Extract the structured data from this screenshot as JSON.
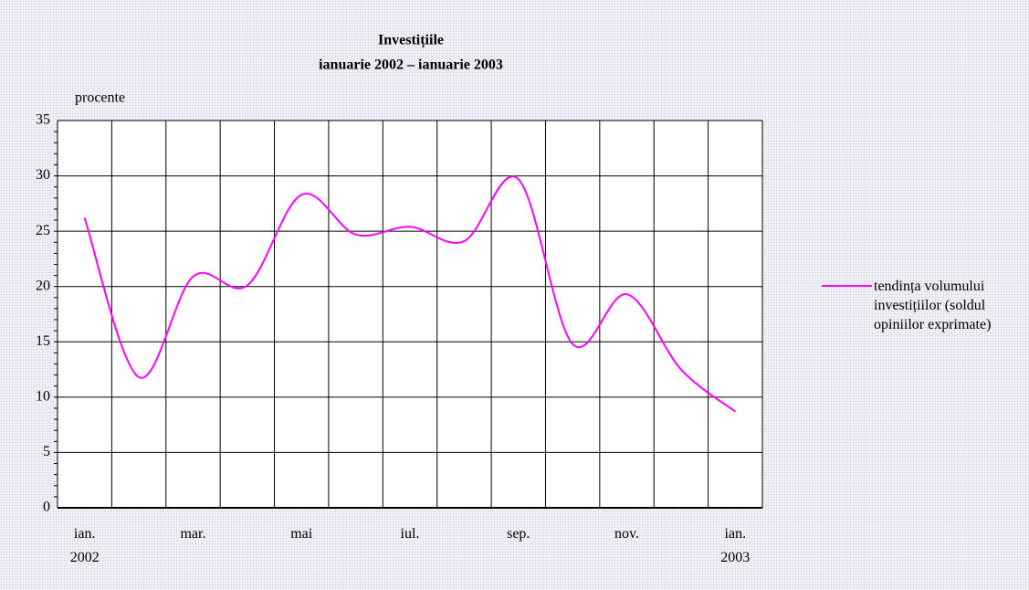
{
  "chart_data": {
    "type": "line",
    "title": "Investițiile",
    "subtitle": "ianuarie 2002 – ianuarie 2003",
    "y_label": "procente",
    "categories": [
      "ian. 2002",
      null,
      "mar.",
      null,
      "mai",
      null,
      "iul.",
      null,
      "sep.",
      null,
      "nov.",
      null,
      "ian. 2003"
    ],
    "series": [
      {
        "name": "tendința volumului investițiilor (soldul opiniilor exprimate)",
        "color": "#ff00ff",
        "values": [
          26.2,
          11.8,
          20.9,
          20.1,
          28.3,
          24.7,
          25.4,
          24.1,
          29.7,
          14.8,
          19.3,
          12.5,
          8.7
        ]
      }
    ],
    "ylim": [
      0,
      35
    ],
    "yticks": [
      0,
      5,
      10,
      15,
      20,
      25,
      30,
      35
    ],
    "grid": true,
    "legend": "right"
  }
}
